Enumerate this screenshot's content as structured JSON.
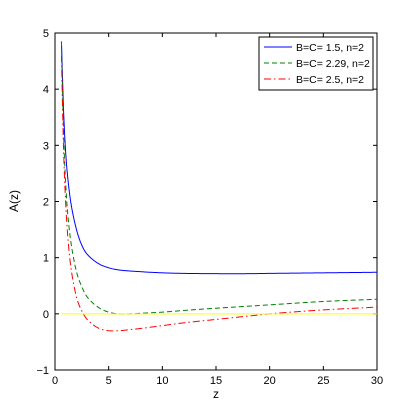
{
  "chart_data": {
    "type": "line",
    "xlabel": "z",
    "ylabel": "A(z)",
    "xlim": [
      0,
      30
    ],
    "ylim": [
      -1,
      5
    ],
    "xticks": [
      0,
      5,
      10,
      15,
      20,
      25,
      30
    ],
    "yticks": [
      -1,
      0,
      1,
      2,
      3,
      4,
      5
    ],
    "xtick_labels": [
      "0",
      "5",
      "10",
      "15",
      "20",
      "25",
      "30"
    ],
    "ytick_labels": [
      "−1",
      "0",
      "1",
      "2",
      "3",
      "4",
      "5"
    ],
    "grid": false,
    "legend_position": "top-right",
    "series": [
      {
        "name": "B=C= 1.5, n=2",
        "color": "#0000ff",
        "dash": "solid",
        "x": [
          0.6,
          0.8,
          1,
          1.2,
          1.5,
          2,
          2.5,
          3,
          4,
          5,
          6,
          8,
          10,
          12,
          15,
          18,
          20,
          25,
          30
        ],
        "y": [
          4.85,
          3.6,
          2.85,
          2.4,
          1.95,
          1.5,
          1.22,
          1.06,
          0.9,
          0.82,
          0.78,
          0.75,
          0.73,
          0.72,
          0.715,
          0.715,
          0.72,
          0.73,
          0.74
        ]
      },
      {
        "name": "B=C= 2.29, n=2",
        "color": "#008000",
        "dash": "dashed",
        "x": [
          0.6,
          0.8,
          1,
          1.2,
          1.5,
          2,
          2.5,
          3,
          4,
          5,
          6,
          7,
          8,
          10,
          12,
          15,
          20,
          25,
          30
        ],
        "y": [
          4.85,
          3.2,
          2.3,
          1.75,
          1.25,
          0.75,
          0.48,
          0.3,
          0.12,
          0.03,
          0.0,
          0.0,
          0.01,
          0.03,
          0.06,
          0.1,
          0.16,
          0.22,
          0.26
        ]
      },
      {
        "name": "B=C= 2.5, n=2",
        "color": "#ff0000",
        "dash": "dashdot",
        "x": [
          0.6,
          0.8,
          1,
          1.2,
          1.5,
          2,
          2.5,
          3,
          4,
          5,
          6,
          7,
          8,
          10,
          12,
          15,
          18,
          20,
          22,
          25,
          30
        ],
        "y": [
          4.6,
          2.9,
          1.95,
          1.35,
          0.8,
          0.3,
          0.05,
          -0.1,
          -0.25,
          -0.3,
          -0.3,
          -0.28,
          -0.26,
          -0.21,
          -0.16,
          -0.1,
          -0.04,
          0.0,
          0.03,
          0.07,
          0.12
        ]
      },
      {
        "name": "",
        "color": "#ffff00",
        "dash": "solid",
        "x": [
          0.6,
          30
        ],
        "y": [
          0,
          0
        ]
      }
    ]
  }
}
